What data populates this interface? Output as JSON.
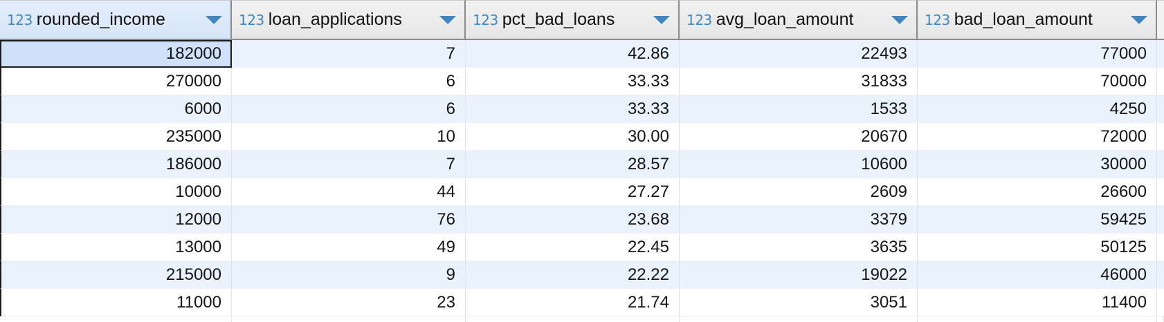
{
  "table": {
    "columns": [
      {
        "type_label": "123",
        "name": "rounded_income"
      },
      {
        "type_label": "123",
        "name": "loan_applications"
      },
      {
        "type_label": "123",
        "name": "pct_bad_loans"
      },
      {
        "type_label": "123",
        "name": "avg_loan_amount"
      },
      {
        "type_label": "123",
        "name": "bad_loan_amount"
      }
    ],
    "rows": [
      [
        "182000",
        "7",
        "42.86",
        "22493",
        "77000"
      ],
      [
        "270000",
        "6",
        "33.33",
        "31833",
        "70000"
      ],
      [
        "6000",
        "6",
        "33.33",
        "1533",
        "4250"
      ],
      [
        "235000",
        "10",
        "30.00",
        "20670",
        "72000"
      ],
      [
        "186000",
        "7",
        "28.57",
        "10600",
        "30000"
      ],
      [
        "10000",
        "44",
        "27.27",
        "2609",
        "26600"
      ],
      [
        "12000",
        "76",
        "23.68",
        "3379",
        "59425"
      ],
      [
        "13000",
        "49",
        "22.45",
        "3635",
        "50125"
      ],
      [
        "215000",
        "9",
        "22.22",
        "19022",
        "46000"
      ],
      [
        "11000",
        "23",
        "21.74",
        "3051",
        "11400"
      ]
    ],
    "selected_cell": {
      "row": 0,
      "col": 0
    },
    "icons": {
      "column_type": "numeric-type-icon",
      "sort": "sort-dropdown-icon"
    },
    "colors": {
      "accent": "#3f86c4",
      "row_stripe": "#e9f2fd",
      "selected_cell": "#cfe2fa",
      "header_bg": "#e6e6e6"
    }
  }
}
